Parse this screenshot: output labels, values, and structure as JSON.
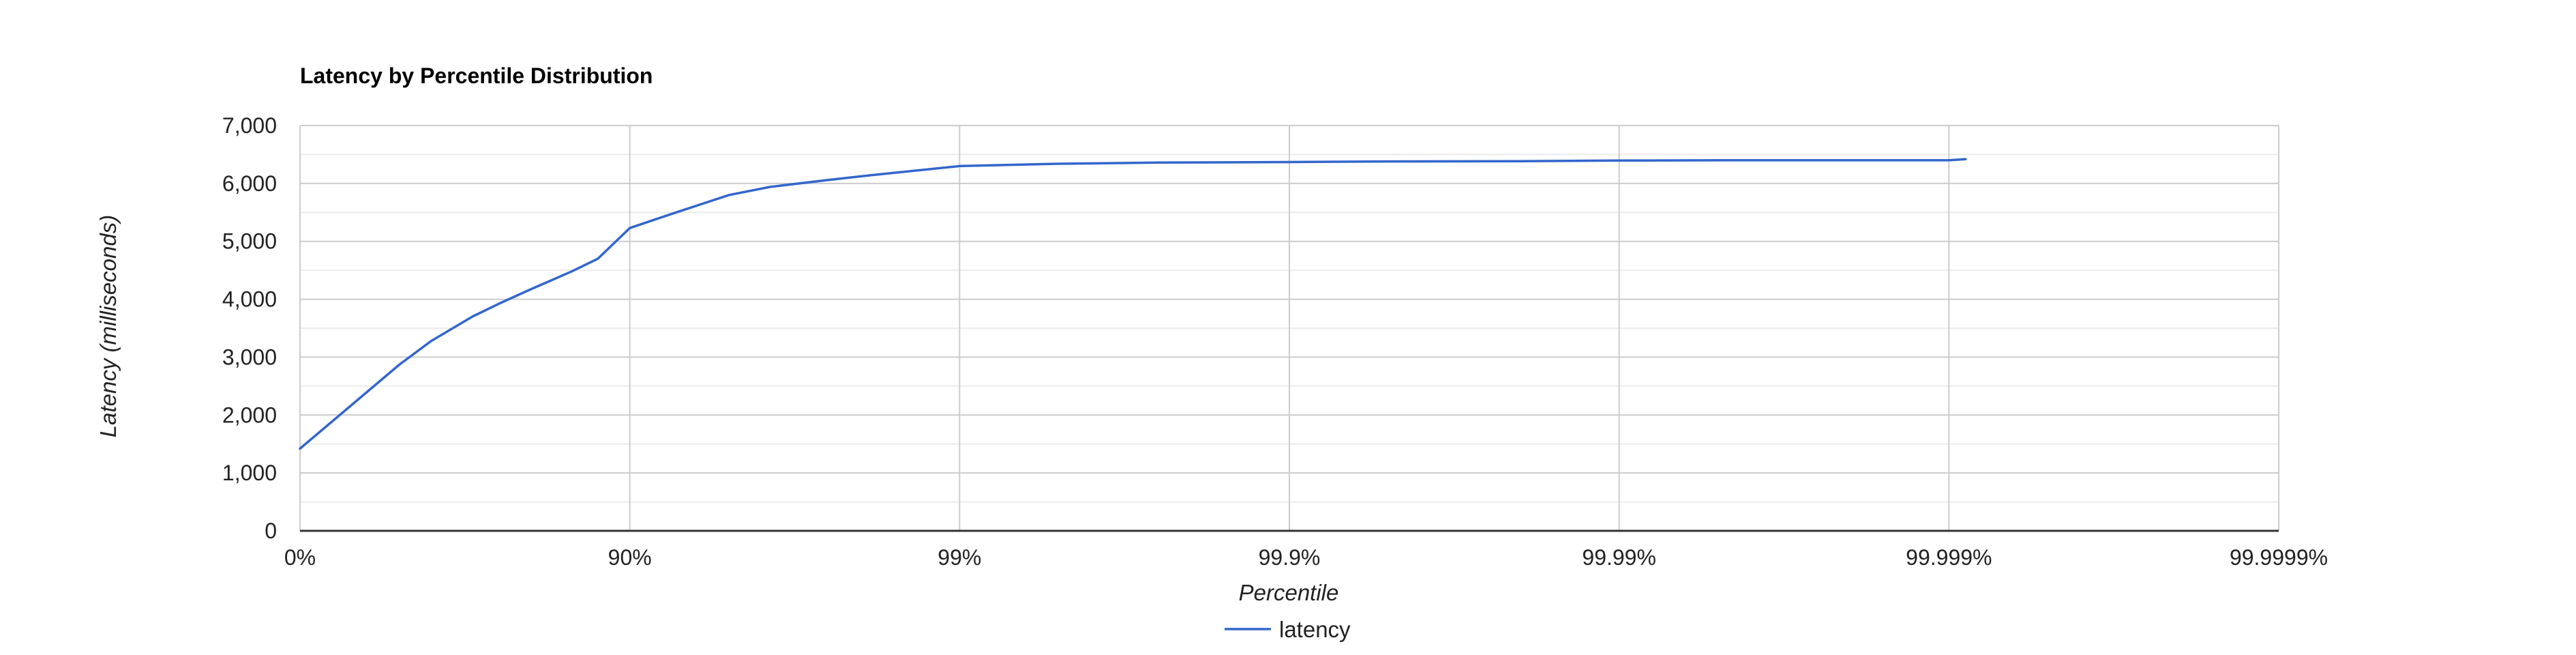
{
  "colors": {
    "series": "#3366cc",
    "grid_major": "#cccccc",
    "grid_minor": "#ebebeb",
    "baseline": "#333333",
    "background": "#ffffff"
  },
  "chart_data": {
    "type": "line",
    "title": "Latency by Percentile Distribution",
    "xlabel": "Percentile",
    "ylabel": "Latency (milliseconds)",
    "x_scale": "log_inverse_percentile",
    "xlim": [
      0,
      99.9999
    ],
    "ylim": [
      0,
      7000
    ],
    "x_ticks": [
      "0%",
      "90%",
      "99%",
      "99.9%",
      "99.99%",
      "99.999%",
      "99.9999%"
    ],
    "y_ticks": [
      "0",
      "1,000",
      "2,000",
      "3,000",
      "4,000",
      "5,000",
      "6,000",
      "7,000"
    ],
    "grid": true,
    "legend": {
      "position": "bottom",
      "entries": [
        "latency"
      ]
    },
    "series": [
      {
        "name": "latency",
        "color": "#3366cc",
        "x": [
          0,
          50,
          60,
          70,
          75,
          80,
          85,
          87.5,
          90,
          92.5,
          95,
          96.25,
          97.5,
          98.125,
          99,
          99.5,
          99.75,
          99.9,
          99.95,
          99.98,
          99.99,
          99.995,
          99.999,
          99.99911
        ],
        "y": [
          1420,
          2870,
          3280,
          3700,
          3920,
          4170,
          4480,
          4700,
          5230,
          5470,
          5800,
          5940,
          6060,
          6140,
          6300,
          6340,
          6360,
          6370,
          6380,
          6385,
          6395,
          6400,
          6400,
          6420
        ]
      }
    ]
  }
}
